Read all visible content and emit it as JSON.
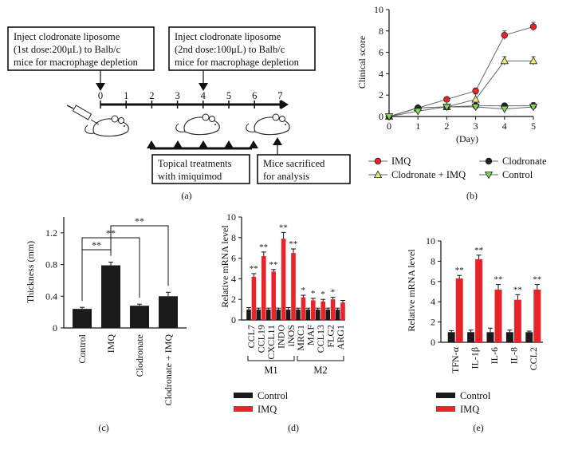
{
  "panels": {
    "a": "(a)",
    "b": "(b)",
    "c": "(c)",
    "d": "(d)",
    "e": "(e)"
  },
  "schematic": {
    "box1": [
      "Inject clodronate liposome",
      "(1st dose:200μL) to Balb/c",
      "mice for macrophage depletion"
    ],
    "box2": [
      "Inject clodronate liposome",
      "(2nd dose:100μL) to Balb/c",
      "mice for macrophage depletion"
    ],
    "box3": [
      "Topical treatments",
      "with imiquimod"
    ],
    "box4": [
      "Mice sacrificed",
      "for analysis"
    ],
    "days": [
      "0",
      "1",
      "2",
      "3",
      "4",
      "5",
      "6",
      "7"
    ]
  },
  "colors": {
    "imq": "#e8232a",
    "control_bar": "#222222",
    "clodronate_imq": "#f0ec7a",
    "control_line": "#7ed957",
    "clodronate": "#222222",
    "bar_black": "#1a1a1a"
  },
  "chart_data": [
    {
      "id": "b",
      "type": "line",
      "ylabel": "Clinical score",
      "xlabel": "(Day)",
      "x": [
        0,
        1,
        2,
        3,
        4,
        5
      ],
      "xlim": [
        0,
        5
      ],
      "ylim": [
        0,
        10
      ],
      "yticks": [
        0,
        2,
        4,
        6,
        8,
        10
      ],
      "series": [
        {
          "name": "IMQ",
          "color": "#e8232a",
          "values": [
            0,
            0.8,
            1.6,
            2.4,
            7.6,
            8.4
          ],
          "err": [
            0,
            0.1,
            0.15,
            0.1,
            0.4,
            0.4
          ]
        },
        {
          "name": "Clodronate + IMQ",
          "color": "#f0ec7a",
          "values": [
            0,
            0.8,
            0.9,
            1.6,
            5.2,
            5.2
          ],
          "err": [
            0,
            0.1,
            0.1,
            0.5,
            0.4,
            0.4
          ]
        },
        {
          "name": "Clodronate",
          "color": "#222222",
          "values": [
            0,
            0.8,
            0.9,
            1.0,
            1.0,
            1.0
          ],
          "err": [
            0,
            0.1,
            0.1,
            0.2,
            0.2,
            0.3
          ]
        },
        {
          "name": "Control",
          "color": "#7ed957",
          "values": [
            0,
            0.5,
            0.9,
            0.9,
            0.7,
            0.9
          ],
          "err": [
            0,
            0.1,
            0.1,
            0.2,
            0.2,
            0.3
          ]
        }
      ]
    },
    {
      "id": "c",
      "type": "bar",
      "ylabel": "Thickness (mm)",
      "categories": [
        "Control",
        "IMQ",
        "Clodronate",
        "Clodronate + IMQ"
      ],
      "values": [
        0.24,
        0.79,
        0.28,
        0.4
      ],
      "err": [
        0.02,
        0.04,
        0.02,
        0.05
      ],
      "ylim": [
        0,
        1.4
      ],
      "yticks": [
        "0",
        "0.4",
        "0.8",
        "1.2"
      ],
      "ytick_values": [
        0,
        0.4,
        0.8,
        1.2
      ],
      "significance": [
        "**",
        "**",
        "**"
      ]
    },
    {
      "id": "d",
      "type": "bar",
      "ylabel": "Relative mRNA level",
      "categories": [
        "CCL7",
        "CCL19",
        "CXCL11",
        "INDO",
        "iNOS",
        "MRC1",
        "MAF",
        "CCL13",
        "FLG2",
        "ARG1"
      ],
      "groups": [
        {
          "name": "M1",
          "from": 0,
          "to": 4
        },
        {
          "name": "M2",
          "from": 5,
          "to": 9
        }
      ],
      "ylim": [
        0,
        10
      ],
      "yticks": [
        0,
        2,
        4,
        6,
        8,
        10
      ],
      "series": [
        {
          "name": "Control",
          "color": "#1a1a1a",
          "values": [
            1,
            1,
            1,
            1,
            1,
            1,
            1,
            1,
            1,
            1
          ],
          "err": [
            0.2,
            0.15,
            0.15,
            0.15,
            0.2,
            0.15,
            0.15,
            0.15,
            0.15,
            0.15
          ]
        },
        {
          "name": "IMQ",
          "color": "#e8232a",
          "values": [
            4.2,
            6.2,
            4.7,
            7.9,
            6.5,
            2.2,
            1.9,
            1.8,
            2.0,
            1.7
          ],
          "err": [
            0.3,
            0.4,
            0.2,
            0.6,
            0.4,
            0.2,
            0.2,
            0.2,
            0.2,
            0.2
          ]
        }
      ],
      "significance": [
        "**",
        "**",
        "**",
        "**",
        "**",
        "*",
        "*",
        "*",
        "*",
        ""
      ]
    },
    {
      "id": "e",
      "type": "bar",
      "ylabel": "Relative mRNA level",
      "categories": [
        "TFN-α",
        "IL-1β",
        "IL-6",
        "IL-8",
        "CCL2"
      ],
      "ylim": [
        0,
        10
      ],
      "yticks": [
        0,
        2,
        4,
        6,
        8,
        10
      ],
      "series": [
        {
          "name": "Control",
          "color": "#1a1a1a",
          "values": [
            1,
            1,
            1,
            1,
            1
          ],
          "err": [
            0.15,
            0.2,
            0.4,
            0.2,
            0.1
          ]
        },
        {
          "name": "IMQ",
          "color": "#e8232a",
          "values": [
            6.3,
            8.2,
            5.2,
            4.2,
            5.2
          ],
          "err": [
            0.3,
            0.4,
            0.5,
            0.5,
            0.5
          ]
        }
      ],
      "significance": [
        "**",
        "**",
        "**",
        "**",
        "**"
      ]
    }
  ]
}
